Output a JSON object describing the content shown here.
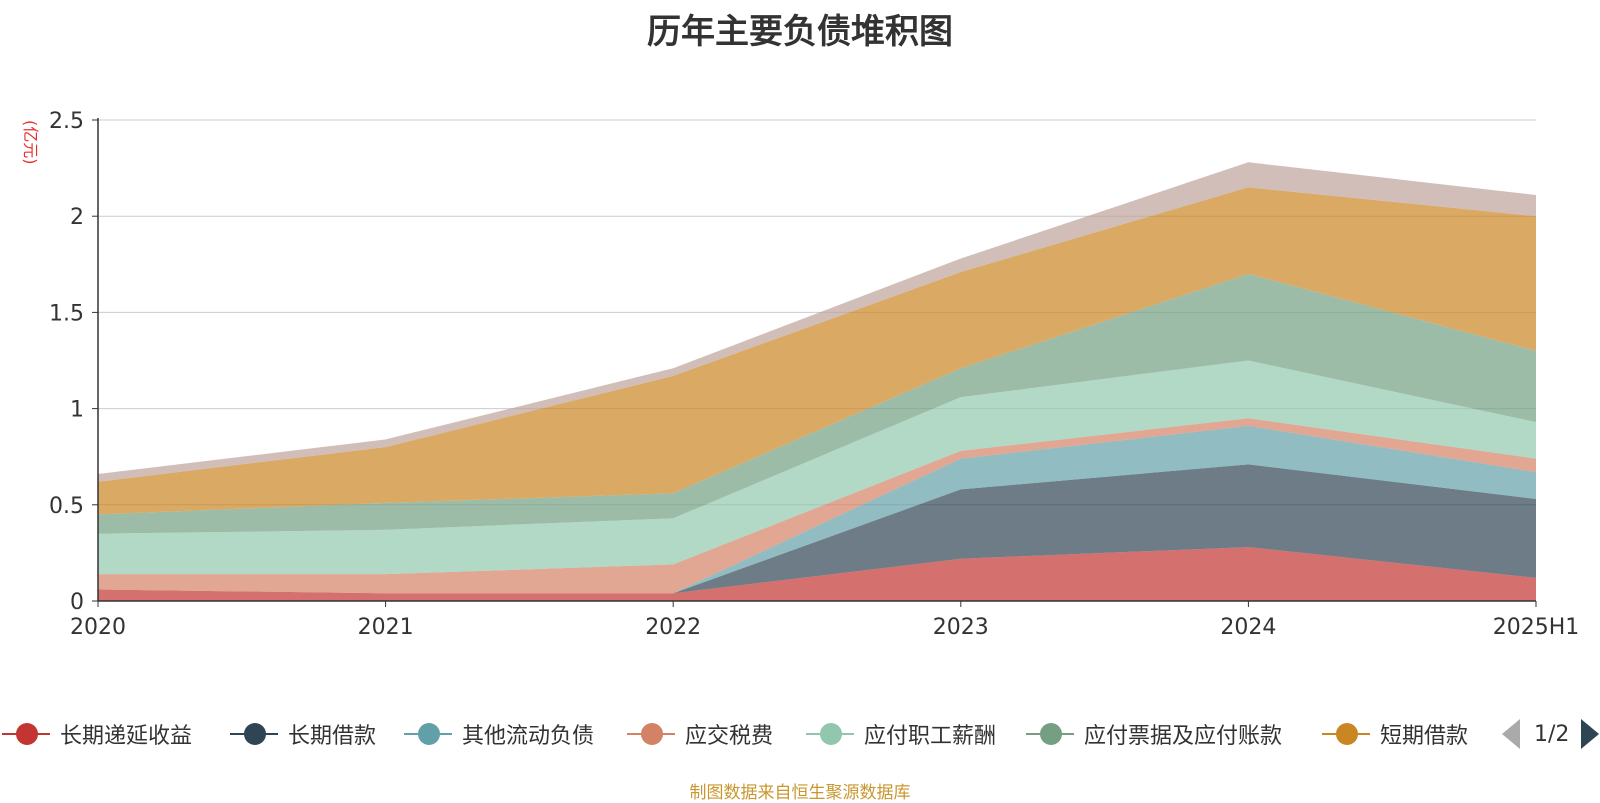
{
  "chart_data": {
    "type": "area",
    "stacked": true,
    "title": "历年主要负债堆积图",
    "ylabel": "(亿元)",
    "xlabel": "",
    "categories": [
      "2020",
      "2021",
      "2022",
      "2023",
      "2024",
      "2025H1"
    ],
    "yticks": [
      "0",
      "0.5",
      "1",
      "1.5",
      "2",
      "2.5"
    ],
    "ylim": [
      0,
      2.5
    ],
    "grid": true,
    "legend_position": "bottom",
    "series": [
      {
        "name": "长期递延收益",
        "color": "#c23531",
        "values": [
          0.06,
          0.04,
          0.04,
          0.22,
          0.28,
          0.12
        ]
      },
      {
        "name": "长期借款",
        "color": "#2f4554",
        "values": [
          0,
          0,
          0,
          0.36,
          0.43,
          0.41
        ]
      },
      {
        "name": "其他流动负债",
        "color": "#61a0a8",
        "values": [
          0,
          0,
          0,
          0.16,
          0.2,
          0.14
        ]
      },
      {
        "name": "应交税费",
        "color": "#d48265",
        "values": [
          0.08,
          0.1,
          0.15,
          0.04,
          0.04,
          0.07
        ]
      },
      {
        "name": "应付职工薪酬",
        "color": "#91c7ae",
        "values": [
          0.21,
          0.23,
          0.24,
          0.28,
          0.3,
          0.19
        ]
      },
      {
        "name": "应付票据及应付账款",
        "color": "#749f83",
        "values": [
          0.1,
          0.14,
          0.13,
          0.15,
          0.45,
          0.37
        ]
      },
      {
        "name": "短期借款",
        "color": "#ca8622",
        "values": [
          0.17,
          0.29,
          0.61,
          0.5,
          0.45,
          0.7
        ]
      },
      {
        "name": "",
        "color": "#bda29a",
        "values": [
          0.04,
          0.04,
          0.04,
          0.07,
          0.13,
          0.11
        ]
      }
    ]
  },
  "legend": {
    "items": [
      "长期递延收益",
      "长期借款",
      "其他流动负债",
      "应交税费",
      "应付职工薪酬",
      "应付票据及应付账款",
      "短期借款"
    ],
    "page_indicator": "1/2"
  },
  "source_note": "制图数据来自恒生聚源数据库"
}
